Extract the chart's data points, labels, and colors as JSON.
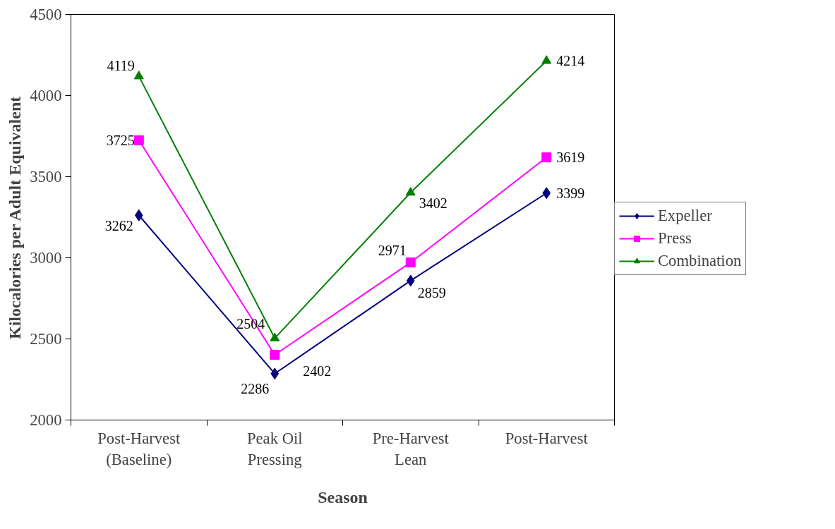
{
  "chart_data": {
    "type": "line",
    "xlabel": "Season",
    "ylabel": "Kilocalories per Adult Equivalent",
    "categories": [
      "Post-Harvest (Baseline)",
      "Peak Oil Pressing",
      "Pre-Harvest Lean",
      "Post-Harvest"
    ],
    "series": [
      {
        "name": "Expeller",
        "color": "#000080",
        "marker": "diamond",
        "values": [
          3262,
          2286,
          2859,
          3399
        ]
      },
      {
        "name": "Press",
        "color": "#ff00ff",
        "marker": "square",
        "values": [
          3725,
          2402,
          2971,
          3619
        ]
      },
      {
        "name": "Combination",
        "color": "#008000",
        "marker": "triangle",
        "values": [
          4119,
          2504,
          3402,
          4214
        ]
      }
    ],
    "ylim": [
      2000,
      4500
    ],
    "yticks": [
      2000,
      2500,
      3000,
      3500,
      4000,
      4500
    ],
    "grid": false,
    "legend": "right",
    "data_labels": true,
    "line_style": "solid"
  }
}
